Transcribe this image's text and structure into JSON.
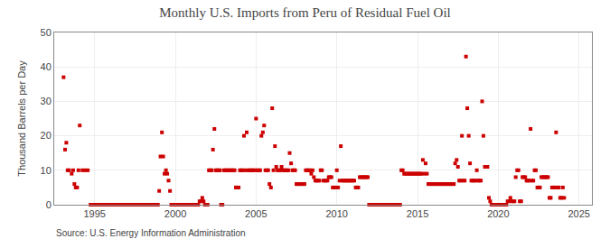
{
  "chart_data": {
    "type": "scatter",
    "title": "Monthly U.S. Imports from Peru of Residual Fuel Oil",
    "ylabel": "Thousand Barrels per Day",
    "annotation": "Source: U.S. Energy Information Administration",
    "color": "#cc0000",
    "marker": "square",
    "grid": true,
    "xlim": [
      1992.5,
      2025.8
    ],
    "ylim": [
      0,
      50
    ],
    "xticks": [
      1995,
      2000,
      2005,
      2010,
      2015,
      2020,
      2025
    ],
    "yticks": [
      0,
      10,
      20,
      30,
      40,
      50
    ],
    "x": [
      1993.08,
      1993.17,
      1993.25,
      1993.33,
      1993.42,
      1993.58,
      1993.67,
      1993.75,
      1993.83,
      1993.92,
      1994.0,
      1994.08,
      1994.25,
      1994.42,
      1994.58,
      1994.75,
      1994.83,
      1994.92,
      1995.0,
      1995.08,
      1995.17,
      1995.25,
      1995.33,
      1995.42,
      1995.5,
      1995.58,
      1995.67,
      1995.75,
      1995.83,
      1995.92,
      1996.0,
      1996.08,
      1996.17,
      1996.25,
      1996.33,
      1996.42,
      1996.5,
      1996.58,
      1996.67,
      1996.75,
      1996.83,
      1996.92,
      1997.0,
      1997.08,
      1997.17,
      1997.25,
      1997.33,
      1997.42,
      1997.5,
      1997.58,
      1997.67,
      1997.75,
      1997.83,
      1997.92,
      1998.0,
      1998.08,
      1998.17,
      1998.25,
      1998.33,
      1998.42,
      1998.5,
      1998.58,
      1998.67,
      1998.75,
      1998.83,
      1998.92,
      1999.0,
      1999.08,
      1999.17,
      1999.25,
      1999.33,
      1999.42,
      1999.5,
      1999.58,
      1999.67,
      1999.75,
      1999.83,
      1999.92,
      2000.0,
      2000.08,
      2000.17,
      2000.25,
      2000.33,
      2000.42,
      2000.5,
      2000.58,
      2000.67,
      2000.75,
      2000.83,
      2000.92,
      2001.0,
      2001.08,
      2001.17,
      2001.25,
      2001.33,
      2001.42,
      2001.5,
      2001.58,
      2001.67,
      2001.75,
      2001.83,
      2001.92,
      2002.0,
      2002.08,
      2002.17,
      2002.25,
      2002.33,
      2002.42,
      2002.5,
      2002.58,
      2002.67,
      2002.75,
      2002.83,
      2002.92,
      2003.0,
      2003.08,
      2003.17,
      2003.25,
      2003.33,
      2003.42,
      2003.5,
      2003.58,
      2003.67,
      2003.75,
      2003.83,
      2003.92,
      2004.0,
      2004.08,
      2004.17,
      2004.25,
      2004.33,
      2004.42,
      2004.5,
      2004.58,
      2004.67,
      2004.75,
      2004.83,
      2004.92,
      2005.0,
      2005.08,
      2005.17,
      2005.25,
      2005.33,
      2005.42,
      2005.5,
      2005.58,
      2005.67,
      2005.75,
      2005.83,
      2005.92,
      2006.0,
      2006.08,
      2006.17,
      2006.25,
      2006.33,
      2006.42,
      2006.5,
      2006.58,
      2006.67,
      2006.75,
      2006.83,
      2006.92,
      2007.0,
      2007.08,
      2007.17,
      2007.25,
      2007.33,
      2007.42,
      2007.5,
      2007.58,
      2007.67,
      2007.75,
      2007.83,
      2007.92,
      2008.0,
      2008.08,
      2008.17,
      2008.25,
      2008.33,
      2008.42,
      2008.5,
      2008.58,
      2008.67,
      2008.75,
      2008.83,
      2008.92,
      2009.0,
      2009.08,
      2009.17,
      2009.25,
      2009.33,
      2009.42,
      2009.5,
      2009.58,
      2009.67,
      2009.75,
      2009.83,
      2009.92,
      2010.0,
      2010.08,
      2010.17,
      2010.25,
      2010.33,
      2010.42,
      2010.5,
      2010.58,
      2010.67,
      2010.75,
      2010.83,
      2010.92,
      2011.0,
      2011.08,
      2011.17,
      2011.25,
      2011.33,
      2011.42,
      2011.5,
      2011.58,
      2011.67,
      2011.75,
      2011.83,
      2011.92,
      2012.0,
      2012.08,
      2012.17,
      2012.25,
      2012.33,
      2012.42,
      2012.5,
      2012.58,
      2012.67,
      2012.75,
      2012.83,
      2012.92,
      2013.0,
      2013.08,
      2013.17,
      2013.25,
      2013.33,
      2013.42,
      2013.5,
      2013.58,
      2013.67,
      2013.75,
      2013.83,
      2013.92,
      2014.0,
      2014.08,
      2014.17,
      2014.25,
      2014.33,
      2014.42,
      2014.5,
      2014.58,
      2014.67,
      2014.75,
      2014.83,
      2014.92,
      2015.0,
      2015.08,
      2015.17,
      2015.25,
      2015.33,
      2015.42,
      2015.5,
      2015.58,
      2015.67,
      2015.75,
      2015.83,
      2015.92,
      2016.0,
      2016.08,
      2016.17,
      2016.25,
      2016.33,
      2016.42,
      2016.5,
      2016.58,
      2016.67,
      2016.75,
      2016.83,
      2016.92,
      2017.0,
      2017.08,
      2017.17,
      2017.25,
      2017.33,
      2017.42,
      2017.5,
      2017.58,
      2017.67,
      2017.75,
      2017.83,
      2017.92,
      2018.0,
      2018.08,
      2018.17,
      2018.25,
      2018.33,
      2018.42,
      2018.5,
      2018.58,
      2018.67,
      2018.75,
      2018.83,
      2018.92,
      2019.0,
      2019.08,
      2019.17,
      2019.25,
      2019.33,
      2019.42,
      2019.5,
      2019.58,
      2019.67,
      2019.75,
      2019.83,
      2019.92,
      2020.0,
      2020.08,
      2020.17,
      2020.25,
      2020.33,
      2020.42,
      2020.5,
      2020.58,
      2020.67,
      2020.75,
      2020.83,
      2020.92,
      2021.0,
      2021.08,
      2021.17,
      2021.25,
      2021.33,
      2021.42,
      2021.5,
      2021.58,
      2021.67,
      2021.75,
      2021.83,
      2021.92,
      2022.0,
      2022.08,
      2022.17,
      2022.25,
      2022.33,
      2022.42,
      2022.5,
      2022.58,
      2022.67,
      2022.75,
      2022.83,
      2022.92,
      2023.0,
      2023.08,
      2023.17,
      2023.25,
      2023.33,
      2023.42,
      2023.5,
      2023.58,
      2023.67,
      2023.75,
      2023.83,
      2023.92,
      2024.0,
      2024.08
    ],
    "values": [
      37,
      16,
      18,
      10,
      10,
      9,
      10,
      6,
      5,
      5,
      10,
      23,
      10,
      10,
      10,
      0,
      0,
      0,
      0,
      0,
      0,
      0,
      0,
      0,
      0,
      0,
      0,
      0,
      0,
      0,
      0,
      0,
      0,
      0,
      0,
      0,
      0,
      0,
      0,
      0,
      0,
      0,
      0,
      0,
      0,
      0,
      0,
      0,
      0,
      0,
      0,
      0,
      0,
      0,
      0,
      0,
      0,
      0,
      0,
      0,
      0,
      0,
      0,
      0,
      0,
      0,
      4,
      14,
      21,
      14,
      9,
      10,
      9,
      7,
      4,
      0,
      0,
      0,
      0,
      0,
      0,
      0,
      0,
      0,
      0,
      0,
      0,
      0,
      0,
      0,
      0,
      0,
      0,
      0,
      0,
      0,
      1,
      1,
      2,
      1,
      0,
      0,
      0,
      10,
      10,
      10,
      16,
      22,
      10,
      10,
      10,
      10,
      0,
      0,
      10,
      10,
      10,
      10,
      10,
      10,
      10,
      10,
      10,
      5,
      5,
      5,
      10,
      10,
      10,
      20,
      10,
      21,
      10,
      10,
      10,
      10,
      10,
      10,
      25,
      10,
      10,
      10,
      20,
      21,
      23,
      10,
      10,
      10,
      6,
      5,
      28,
      10,
      17,
      11,
      10,
      10,
      10,
      11,
      10,
      10,
      10,
      10,
      10,
      15,
      12,
      10,
      10,
      10,
      6,
      6,
      6,
      6,
      6,
      6,
      6,
      10,
      10,
      10,
      10,
      9,
      10,
      8,
      7,
      7,
      7,
      7,
      10,
      10,
      7,
      7,
      7,
      7,
      8,
      8,
      8,
      5,
      5,
      5,
      10,
      5,
      7,
      17,
      7,
      7,
      7,
      7,
      7,
      7,
      7,
      7,
      7,
      7,
      5,
      5,
      5,
      8,
      8,
      8,
      8,
      8,
      8,
      8,
      0,
      0,
      0,
      0,
      0,
      0,
      0,
      0,
      0,
      0,
      0,
      0,
      0,
      0,
      0,
      0,
      0,
      0,
      0,
      0,
      0,
      0,
      0,
      0,
      10,
      10,
      9,
      9,
      9,
      9,
      9,
      9,
      9,
      9,
      9,
      9,
      9,
      9,
      9,
      9,
      13,
      9,
      12,
      9,
      6,
      6,
      6,
      6,
      6,
      6,
      6,
      6,
      6,
      6,
      6,
      6,
      6,
      6,
      6,
      6,
      6,
      6,
      6,
      6,
      12,
      13,
      11,
      7,
      7,
      20,
      7,
      7,
      43,
      28,
      20,
      12,
      7,
      7,
      7,
      7,
      10,
      7,
      7,
      7,
      30,
      20,
      11,
      11,
      11,
      2,
      1,
      0,
      0,
      0,
      0,
      0,
      0,
      0,
      0,
      0,
      0,
      0,
      0,
      1,
      1,
      2,
      1,
      1,
      1,
      8,
      10,
      10,
      1,
      1,
      8,
      8,
      8,
      7,
      7,
      7,
      22,
      7,
      7,
      10,
      10,
      5,
      5,
      5,
      8,
      8,
      8,
      8,
      8,
      8,
      2,
      2,
      5,
      5,
      5,
      21,
      5,
      5,
      2,
      2,
      5,
      2
    ]
  }
}
